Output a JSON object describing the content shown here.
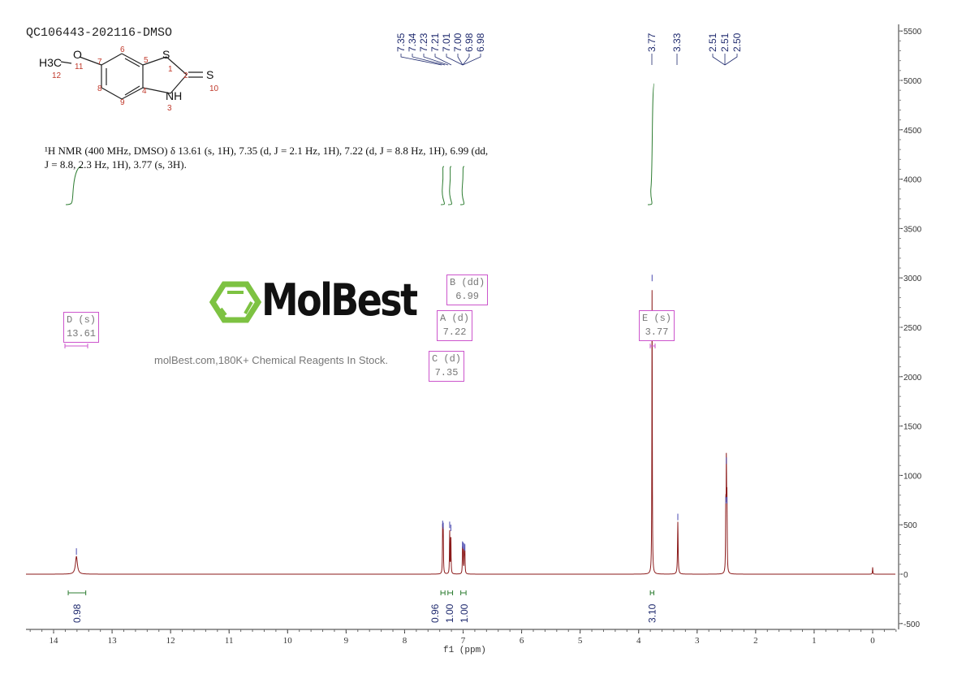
{
  "chart_data": {
    "type": "line",
    "title": "QC106443-202116-DMSO",
    "xlabel": "f1 (ppm)",
    "ylabel": "",
    "xlim": [
      14.47,
      -0.39
    ],
    "ylim": [
      -500,
      5600
    ],
    "x_axis_reversed": true,
    "x_ticks": [
      14,
      13,
      12,
      11,
      10,
      9,
      8,
      7,
      6,
      5,
      4,
      3,
      2,
      1,
      0
    ],
    "y_ticks": [
      -500,
      0,
      500,
      1000,
      1500,
      2000,
      2500,
      3000,
      3500,
      4000,
      4500,
      5000,
      5500
    ],
    "y_axis_position": "right",
    "grid": false,
    "line_color": "#8b1a1a",
    "peaks": [
      {
        "ppm": 13.61,
        "height": 180,
        "width": 0.02
      },
      {
        "ppm": 7.35,
        "height": 460,
        "width": 0.004
      },
      {
        "ppm": 7.34,
        "height": 440,
        "width": 0.004
      },
      {
        "ppm": 7.23,
        "height": 450,
        "width": 0.004
      },
      {
        "ppm": 7.21,
        "height": 420,
        "width": 0.004
      },
      {
        "ppm": 7.01,
        "height": 250,
        "width": 0.004
      },
      {
        "ppm": 7.0,
        "height": 240,
        "width": 0.004
      },
      {
        "ppm": 6.98,
        "height": 230,
        "width": 0.004
      },
      {
        "ppm": 6.97,
        "height": 220,
        "width": 0.004
      },
      {
        "ppm": 3.77,
        "height": 2950,
        "width": 0.004
      },
      {
        "ppm": 3.33,
        "height": 530,
        "width": 0.006
      },
      {
        "ppm": 2.51,
        "height": 700,
        "width": 0.004
      },
      {
        "ppm": 2.5,
        "height": 1100,
        "width": 0.004
      },
      {
        "ppm": 2.49,
        "height": 700,
        "width": 0.004
      },
      {
        "ppm": 0.0,
        "height": 70,
        "width": 0.004
      }
    ],
    "peak_labels": [
      "7.35",
      "7.34",
      "7.23",
      "7.21",
      "7.01",
      "7.00",
      "6.98",
      "6.98",
      "3.77",
      "3.33",
      "2.51",
      "2.51",
      "2.50"
    ],
    "integrals": [
      {
        "from": 13.75,
        "to": 13.45,
        "value": "0.98"
      },
      {
        "from": 7.38,
        "to": 7.31,
        "value": "0.96"
      },
      {
        "from": 7.26,
        "to": 7.18,
        "value": "1.00"
      },
      {
        "from": 7.04,
        "to": 6.95,
        "value": "1.00"
      },
      {
        "from": 3.8,
        "to": 3.74,
        "value": "3.10"
      }
    ],
    "multiplets": [
      {
        "label": "D (s)",
        "value": "13.61"
      },
      {
        "label": "B (dd)",
        "value": "6.99"
      },
      {
        "label": "A (d)",
        "value": "7.22"
      },
      {
        "label": "C (d)",
        "value": "7.35"
      },
      {
        "label": "E (s)",
        "value": "3.77"
      }
    ],
    "integral_color": "#2e7d32",
    "label_color": "#1f2a6e",
    "annotation_color": "#cc55cc"
  },
  "description": {
    "line1": "¹H NMR (400 MHz, DMSO) δ 13.61 (s, 1H), 7.35 (d, J = 2.1 Hz, 1H), 7.22 (d, J = 8.8 Hz, 1H), 6.99 (dd,",
    "line2": "J = 8.8, 2.3 Hz, 1H), 3.77 (s, 3H)."
  },
  "structure": {
    "atoms": [
      "H3C",
      "O",
      "S",
      "S",
      "NH"
    ],
    "numbers": [
      "1",
      "2",
      "3",
      "4",
      "5",
      "6",
      "7",
      "8",
      "9",
      "10",
      "11",
      "12"
    ]
  },
  "watermark": {
    "brand": "MolBest",
    "tagline": "molBest.com,180K+ Chemical Reagents In Stock.",
    "brand_color": "#7dc242"
  }
}
